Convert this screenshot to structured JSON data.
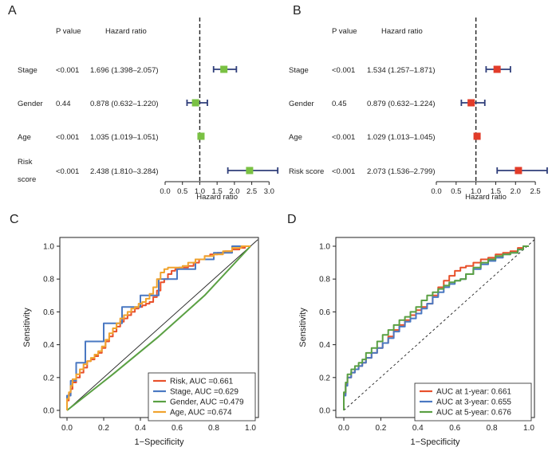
{
  "figure": {
    "panels": [
      "A",
      "B",
      "C",
      "D"
    ]
  },
  "chart_data": [
    {
      "panel": "A",
      "type": "forest",
      "header": {
        "pvalue": "P value",
        "hr": "Hazard ratio"
      },
      "xlabel": "Hazard ratio",
      "xlim": [
        0,
        3.2
      ],
      "xticks": [
        0.0,
        0.5,
        1.0,
        1.5,
        2.0,
        2.5,
        3.0
      ],
      "xtick_labels": [
        "0.0",
        "0.5",
        "1.0",
        "1.5",
        "2.0",
        "2.5",
        "3.0"
      ],
      "reference_line": 1,
      "marker_color": "#7ac143",
      "ci_color": "#2f3e7a",
      "rows": [
        {
          "label": "Stage",
          "pvalue": "<0.001",
          "hr_text": "1.696 (1.398–2.057)",
          "hr": 1.696,
          "lo": 1.398,
          "hi": 2.057
        },
        {
          "label": "Gender",
          "pvalue": "0.44",
          "hr_text": "0.878 (0.632–1.220)",
          "hr": 0.878,
          "lo": 0.632,
          "hi": 1.22
        },
        {
          "label": "Age",
          "pvalue": "<0.001",
          "hr_text": "1.035 (1.019–1.051)",
          "hr": 1.035,
          "lo": 1.019,
          "hi": 1.051
        },
        {
          "label": "Risk\nscore",
          "pvalue": "<0.001",
          "hr_text": "2.438 (1.810–3.284)",
          "hr": 2.438,
          "lo": 1.81,
          "hi": 3.284
        }
      ]
    },
    {
      "panel": "B",
      "type": "forest",
      "header": {
        "pvalue": "P value",
        "hr": "Hazard ratio"
      },
      "xlabel": "Hazard ratio",
      "xlim": [
        0,
        2.8
      ],
      "xticks": [
        0.0,
        0.5,
        1.0,
        1.5,
        2.0,
        2.5
      ],
      "xtick_labels": [
        "0.0",
        "0.5",
        "1.0",
        "1.5",
        "2.0",
        "2.5"
      ],
      "reference_line": 1,
      "marker_color": "#e23c2a",
      "ci_color": "#2f3e7a",
      "rows": [
        {
          "label": "Stage",
          "pvalue": "<0.001",
          "hr_text": "1.534 (1.257–1.871)",
          "hr": 1.534,
          "lo": 1.257,
          "hi": 1.871
        },
        {
          "label": "Gender",
          "pvalue": "0.45",
          "hr_text": "0.879 (0.632–1.224)",
          "hr": 0.879,
          "lo": 0.632,
          "hi": 1.224
        },
        {
          "label": "Age",
          "pvalue": "<0.001",
          "hr_text": "1.029 (1.013–1.045)",
          "hr": 1.029,
          "lo": 1.013,
          "hi": 1.045
        },
        {
          "label": "Risk score",
          "pvalue": "<0.001",
          "hr_text": "2.073 (1.536–2.799)",
          "hr": 2.073,
          "lo": 1.536,
          "hi": 2.799
        }
      ]
    },
    {
      "panel": "C",
      "type": "line",
      "xlabel": "1−Specificity",
      "ylabel": "Sensitivity",
      "xlim": [
        0,
        1
      ],
      "ylim": [
        0,
        1
      ],
      "xticks": [
        0.0,
        0.2,
        0.4,
        0.6,
        0.8,
        1.0
      ],
      "xtick_labels": [
        "0.0",
        "0.2",
        "0.4",
        "0.6",
        "0.8",
        "1.0"
      ],
      "yticks": [
        0.0,
        0.2,
        0.4,
        0.6,
        0.8,
        1.0
      ],
      "ytick_labels": [
        "0.0",
        "0.2",
        "0.4",
        "0.6",
        "0.8",
        "1.0"
      ],
      "diagonal": {
        "color": "#222222",
        "style": "solid"
      },
      "legend_position": "bottom-right",
      "series": [
        {
          "name": "Risk, AUC =0.661",
          "color": "#e8502b",
          "x": [
            0,
            0.01,
            0.02,
            0.03,
            0.05,
            0.07,
            0.09,
            0.11,
            0.13,
            0.15,
            0.17,
            0.19,
            0.21,
            0.23,
            0.25,
            0.27,
            0.29,
            0.31,
            0.33,
            0.35,
            0.37,
            0.39,
            0.41,
            0.43,
            0.45,
            0.47,
            0.49,
            0.51,
            0.53,
            0.55,
            0.57,
            0.59,
            0.61,
            0.63,
            0.66,
            0.69,
            0.72,
            0.75,
            0.78,
            0.82,
            0.86,
            0.9,
            0.94,
            0.97,
            1
          ],
          "y": [
            0,
            0.06,
            0.1,
            0.13,
            0.17,
            0.2,
            0.23,
            0.26,
            0.3,
            0.31,
            0.33,
            0.35,
            0.38,
            0.42,
            0.45,
            0.48,
            0.51,
            0.54,
            0.56,
            0.58,
            0.6,
            0.62,
            0.63,
            0.64,
            0.65,
            0.66,
            0.69,
            0.73,
            0.78,
            0.8,
            0.83,
            0.85,
            0.86,
            0.87,
            0.87,
            0.88,
            0.9,
            0.92,
            0.94,
            0.95,
            0.96,
            0.97,
            0.98,
            0.99,
            1
          ]
        },
        {
          "name": "Stage, AUC =0.629",
          "color": "#4a78c2",
          "x": [
            0,
            0.02,
            0.05,
            0.1,
            0.2,
            0.3,
            0.4,
            0.5,
            0.6,
            0.7,
            0.8,
            0.9,
            1
          ],
          "y": [
            0,
            0.09,
            0.18,
            0.29,
            0.42,
            0.53,
            0.63,
            0.7,
            0.8,
            0.86,
            0.92,
            0.96,
            1
          ]
        },
        {
          "name": "Gender, AUC =0.479",
          "color": "#5aa043",
          "x": [
            0,
            0.25,
            0.5,
            0.75,
            1
          ],
          "y": [
            0,
            0.22,
            0.45,
            0.7,
            1
          ]
        },
        {
          "name": "Age, AUC =0.674",
          "color": "#f0a32e",
          "x": [
            0,
            0.01,
            0.02,
            0.03,
            0.05,
            0.07,
            0.09,
            0.11,
            0.13,
            0.15,
            0.17,
            0.19,
            0.21,
            0.23,
            0.25,
            0.27,
            0.29,
            0.31,
            0.33,
            0.35,
            0.37,
            0.39,
            0.41,
            0.43,
            0.45,
            0.47,
            0.49,
            0.51,
            0.53,
            0.55,
            0.57,
            0.6,
            0.63,
            0.66,
            0.7,
            0.75,
            0.8,
            0.85,
            0.9,
            0.95,
            1
          ],
          "y": [
            0,
            0.07,
            0.11,
            0.15,
            0.19,
            0.22,
            0.25,
            0.28,
            0.3,
            0.32,
            0.34,
            0.36,
            0.39,
            0.43,
            0.47,
            0.5,
            0.53,
            0.56,
            0.58,
            0.6,
            0.62,
            0.63,
            0.65,
            0.66,
            0.68,
            0.71,
            0.75,
            0.8,
            0.84,
            0.86,
            0.87,
            0.87,
            0.87,
            0.88,
            0.9,
            0.92,
            0.94,
            0.95,
            0.97,
            0.99,
            1
          ]
        }
      ]
    },
    {
      "panel": "D",
      "type": "line",
      "xlabel": "1−Specificity",
      "ylabel": "Sensitivity",
      "xlim": [
        0,
        1
      ],
      "ylim": [
        0,
        1
      ],
      "xticks": [
        0.0,
        0.2,
        0.4,
        0.6,
        0.8,
        1.0
      ],
      "xtick_labels": [
        "0.0",
        "0.2",
        "0.4",
        "0.6",
        "0.8",
        "1.0"
      ],
      "yticks": [
        0.0,
        0.2,
        0.4,
        0.6,
        0.8,
        1.0
      ],
      "ytick_labels": [
        "0.0",
        "0.2",
        "0.4",
        "0.6",
        "0.8",
        "1.0"
      ],
      "diagonal": {
        "color": "#222222",
        "style": "dashed"
      },
      "legend_position": "bottom-right",
      "series": [
        {
          "name": "AUC at 1-year: 0.661",
          "color": "#e8502b",
          "x": [
            0,
            0.01,
            0.02,
            0.04,
            0.06,
            0.08,
            0.1,
            0.12,
            0.15,
            0.18,
            0.21,
            0.24,
            0.27,
            0.3,
            0.33,
            0.36,
            0.39,
            0.42,
            0.45,
            0.48,
            0.51,
            0.54,
            0.57,
            0.6,
            0.63,
            0.66,
            0.7,
            0.74,
            0.78,
            0.82,
            0.86,
            0.9,
            0.94,
            0.97,
            1
          ],
          "y": [
            0,
            0.1,
            0.16,
            0.2,
            0.23,
            0.25,
            0.27,
            0.29,
            0.32,
            0.35,
            0.38,
            0.41,
            0.45,
            0.49,
            0.52,
            0.55,
            0.58,
            0.61,
            0.63,
            0.65,
            0.7,
            0.75,
            0.79,
            0.82,
            0.85,
            0.87,
            0.88,
            0.9,
            0.92,
            0.93,
            0.95,
            0.96,
            0.97,
            0.99,
            1
          ]
        },
        {
          "name": "AUC at 3-year: 0.655",
          "color": "#4a78c2",
          "x": [
            0,
            0.01,
            0.02,
            0.04,
            0.06,
            0.08,
            0.1,
            0.12,
            0.15,
            0.18,
            0.21,
            0.24,
            0.27,
            0.3,
            0.33,
            0.36,
            0.39,
            0.42,
            0.45,
            0.48,
            0.51,
            0.54,
            0.57,
            0.6,
            0.63,
            0.66,
            0.7,
            0.74,
            0.78,
            0.82,
            0.86,
            0.9,
            0.94,
            0.97,
            1
          ],
          "y": [
            0,
            0.09,
            0.15,
            0.2,
            0.23,
            0.25,
            0.27,
            0.29,
            0.32,
            0.35,
            0.38,
            0.41,
            0.44,
            0.48,
            0.51,
            0.54,
            0.56,
            0.59,
            0.62,
            0.65,
            0.69,
            0.72,
            0.75,
            0.77,
            0.79,
            0.8,
            0.83,
            0.86,
            0.89,
            0.91,
            0.93,
            0.95,
            0.96,
            0.98,
            1
          ]
        },
        {
          "name": "AUC at 5-year: 0.676",
          "color": "#5aa043",
          "x": [
            0,
            0.01,
            0.02,
            0.04,
            0.06,
            0.08,
            0.1,
            0.12,
            0.15,
            0.18,
            0.21,
            0.24,
            0.27,
            0.3,
            0.33,
            0.36,
            0.39,
            0.42,
            0.45,
            0.48,
            0.51,
            0.54,
            0.57,
            0.6,
            0.63,
            0.66,
            0.7,
            0.74,
            0.78,
            0.82,
            0.86,
            0.9,
            0.94,
            0.97,
            1
          ],
          "y": [
            0,
            0.11,
            0.17,
            0.22,
            0.25,
            0.27,
            0.29,
            0.31,
            0.35,
            0.38,
            0.42,
            0.46,
            0.49,
            0.52,
            0.55,
            0.57,
            0.6,
            0.63,
            0.67,
            0.7,
            0.72,
            0.74,
            0.76,
            0.78,
            0.79,
            0.8,
            0.83,
            0.87,
            0.9,
            0.92,
            0.94,
            0.95,
            0.96,
            0.98,
            1
          ]
        }
      ]
    }
  ]
}
